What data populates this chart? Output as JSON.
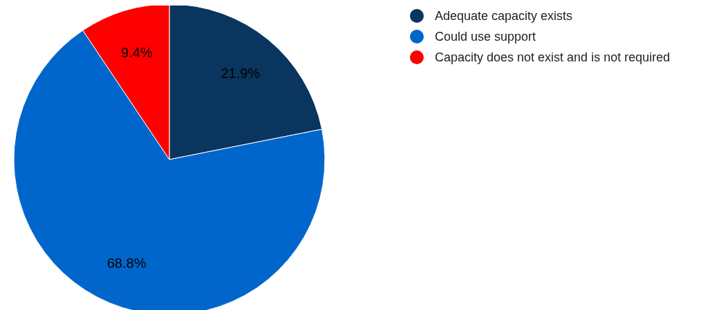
{
  "chart_data": {
    "type": "pie",
    "categories": [
      "Adequate capacity exists",
      "Could use support",
      "Capacity does not exist and is not required"
    ],
    "values": [
      21.9,
      68.8,
      9.4
    ],
    "colors": [
      "#0a355e",
      "#0066cc",
      "#ff0000"
    ],
    "value_labels": [
      "21.9%",
      "68.8%",
      "9.4%"
    ],
    "legend": "top right"
  }
}
